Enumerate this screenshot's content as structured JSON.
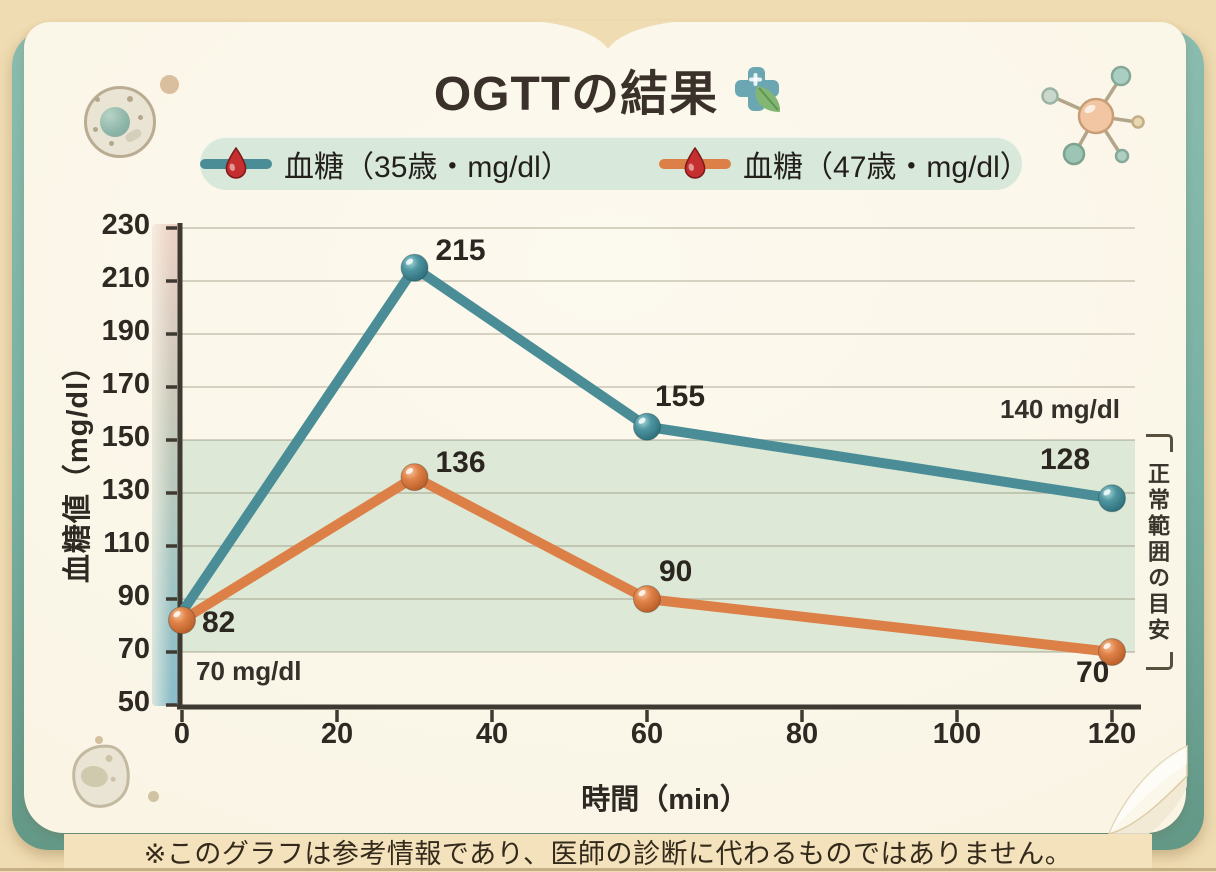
{
  "title": {
    "text": "OGTTの結果"
  },
  "icons": {
    "title_icon": "medical-cross-with-leaf",
    "legend_marker": "blood-drop",
    "decorations": [
      "cell",
      "amoeba-cell",
      "molecule",
      "page-curl"
    ]
  },
  "legend": {
    "items": [
      {
        "label": "血糖（35歳・mg/dl）",
        "color": "#4a8d97"
      },
      {
        "label": "血糖（47歳・mg/dl）",
        "color": "#dd8048"
      }
    ]
  },
  "chart_data": {
    "type": "line",
    "x": [
      0,
      30,
      60,
      120
    ],
    "xlabel": "時間（min）",
    "ylabel": "血糖値（mg/dl）",
    "xticks": [
      0,
      20,
      40,
      60,
      80,
      100,
      120
    ],
    "yticks": [
      50,
      70,
      90,
      110,
      130,
      150,
      170,
      190,
      210,
      230
    ],
    "xlim": [
      0,
      123
    ],
    "ylim": [
      50,
      230
    ],
    "grid": true,
    "legend_position": "top",
    "series": [
      {
        "name": "血糖（35歳・mg/dl）",
        "color": "#4a8d97",
        "values": [
          85,
          215,
          155,
          128
        ],
        "point_labels": [
          "",
          "215",
          "155",
          "128"
        ]
      },
      {
        "name": "血糖（47歳・mg/dl）",
        "color": "#dd8048",
        "values": [
          82,
          136,
          90,
          70
        ],
        "point_labels": [
          "82",
          "136",
          "90",
          "70"
        ]
      }
    ],
    "normal_band": {
      "low": 70,
      "high": 140,
      "draw_low": 70,
      "draw_high": 150,
      "color": "#dde9d6",
      "top_label": "140 mg/dl",
      "bottom_label": "70 mg/dl",
      "side_label": "正常範囲の目安"
    }
  },
  "footer": {
    "text": "※このグラフは参考情報であり、医師の診断に代わるものではありません。"
  },
  "colors": {
    "background": "#f0dcb2",
    "book_cover": "#76b0a2",
    "page": "#faf5e6",
    "legend_pill": "#d8e8db",
    "band": "#dde9d6",
    "axis": "#3f3a31",
    "text": "#2e2a23",
    "series_35": "#4a8d97",
    "series_47": "#dd8048",
    "blood_drop": "#c62f2f"
  }
}
